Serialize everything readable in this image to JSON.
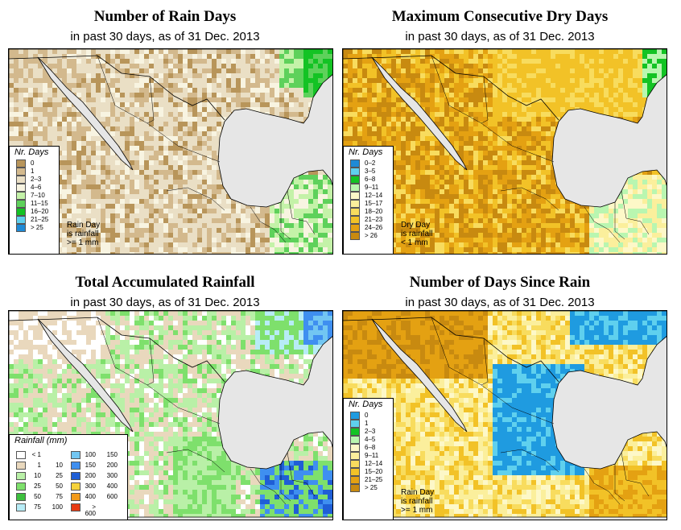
{
  "panels": [
    {
      "title": "Number of Rain Days",
      "subtitle": "in past 30 days, as of  31 Dec. 2013",
      "legend_title": "Nr. Days",
      "legend": [
        {
          "label": "0",
          "color": "#b8955a"
        },
        {
          "label": "1",
          "color": "#d3b98d"
        },
        {
          "label": "2–3",
          "color": "#eadfc5"
        },
        {
          "label": "4–6",
          "color": "#f8f4e1"
        },
        {
          "label": "7–10",
          "color": "#c4f2a8"
        },
        {
          "label": "11–15",
          "color": "#5ed15b"
        },
        {
          "label": "16–20",
          "color": "#13c324"
        },
        {
          "label": "21–25",
          "color": "#5fd0ee"
        },
        {
          "label": "> 25",
          "color": "#1f8ad6"
        }
      ],
      "note": [
        "Rain Day",
        "is rainfall",
        ">= 1 mm"
      ]
    },
    {
      "title": "Maximum Consecutive Dry Days",
      "subtitle": "in past 30 days, as of  31 Dec. 2013",
      "legend_title": "Nr. Days",
      "legend": [
        {
          "label": "0–2",
          "color": "#1f8ad6"
        },
        {
          "label": "3–5",
          "color": "#5fd0ee"
        },
        {
          "label": "6–8",
          "color": "#13c324"
        },
        {
          "label": "9–11",
          "color": "#b9f6b0"
        },
        {
          "label": "12–14",
          "color": "#fdf8c8"
        },
        {
          "label": "15–17",
          "color": "#fbef9c"
        },
        {
          "label": "18–20",
          "color": "#f8dc5e"
        },
        {
          "label": "21–23",
          "color": "#f2c227"
        },
        {
          "label": "24–26",
          "color": "#e4a112"
        },
        {
          "label": "> 26",
          "color": "#c88a10"
        }
      ],
      "note": [
        "Dry Day",
        "is rainfall",
        "< 1 mm"
      ]
    },
    {
      "title": "Total Accumulated Rainfall",
      "subtitle": "in past 30 days, as of  31 Dec. 2013",
      "legend_title": "Rainfall (mm)",
      "legend_left": [
        {
          "a": "< 1",
          "b": "",
          "color": "#ffffff"
        },
        {
          "a": "1",
          "b": "10",
          "color": "#e9d8bd"
        },
        {
          "a": "10",
          "b": "25",
          "color": "#b9f0a7"
        },
        {
          "a": "25",
          "b": "50",
          "color": "#7ee06c"
        },
        {
          "a": "50",
          "b": "75",
          "color": "#3dbf3e"
        },
        {
          "a": "75",
          "b": "100",
          "color": "#b7ecf6"
        }
      ],
      "legend_right": [
        {
          "a": "100",
          "b": "150",
          "color": "#72c6f2"
        },
        {
          "a": "150",
          "b": "200",
          "color": "#3f8ff0"
        },
        {
          "a": "200",
          "b": "300",
          "color": "#1f5ed6"
        },
        {
          "a": "300",
          "b": "400",
          "color": "#f6d23a"
        },
        {
          "a": "400",
          "b": "600",
          "color": "#f29a1a"
        },
        {
          "a": "> 600",
          "b": "",
          "color": "#e73a12"
        }
      ]
    },
    {
      "title": "Number of Days Since Rain",
      "subtitle": "in past 30 days, as of  31 Dec. 2013",
      "legend_title": "Nr. Days",
      "legend": [
        {
          "label": "0",
          "color": "#1f9be0"
        },
        {
          "label": "1",
          "color": "#5fd0ee"
        },
        {
          "label": "2–3",
          "color": "#13c324"
        },
        {
          "label": "4–5",
          "color": "#b9f6b0"
        },
        {
          "label": "6–8",
          "color": "#fdf8c8"
        },
        {
          "label": "9–11",
          "color": "#fbef9c"
        },
        {
          "label": "12–14",
          "color": "#f8dc5e"
        },
        {
          "label": "15–20",
          "color": "#f2c227"
        },
        {
          "label": "21–25",
          "color": "#e4a112"
        },
        {
          "label": "> 25",
          "color": "#c88a10"
        }
      ],
      "note": [
        "Rain Day",
        "is rainfall",
        ">= 1 mm"
      ]
    }
  ]
}
